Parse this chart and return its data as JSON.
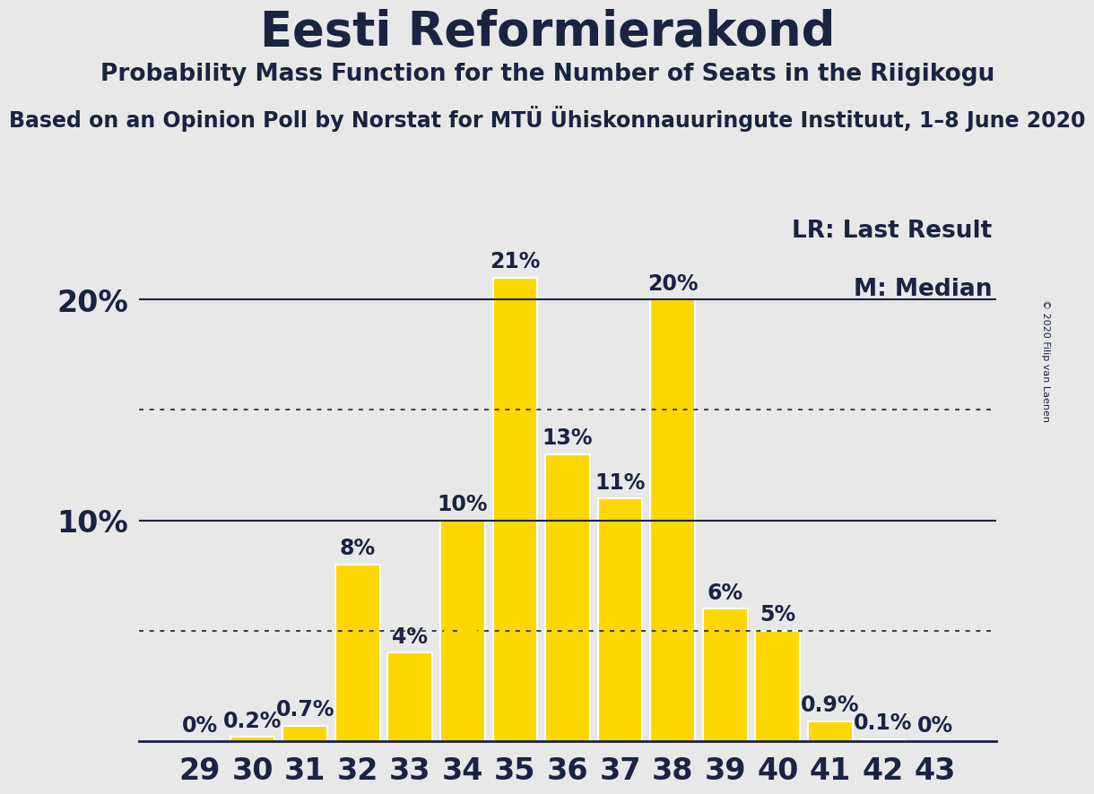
{
  "title": "Eesti Reformierakond",
  "subtitle1": "Probability Mass Function for the Number of Seats in the Riigikogu",
  "subtitle2": "Based on an Opinion Poll by Norstat for MTÜ Ühiskonnauuringute Instituut, 1–8 June 2020",
  "copyright": "© 2020 Filip van Laenen",
  "categories": [
    29,
    30,
    31,
    32,
    33,
    34,
    35,
    36,
    37,
    38,
    39,
    40,
    41,
    42,
    43
  ],
  "values": [
    0.0,
    0.2,
    0.7,
    8.0,
    4.0,
    10.0,
    21.0,
    13.0,
    11.0,
    20.0,
    6.0,
    5.0,
    0.9,
    0.1,
    0.0
  ],
  "bar_color": "#FFD700",
  "bar_edge_color": "#FFFFFF",
  "background_color": "#E8E8E8",
  "text_color": "#1a2340",
  "title_fontsize": 38,
  "subtitle1_fontsize": 19,
  "subtitle2_fontsize": 17,
  "label_fontsize": 17,
  "tick_fontsize": 24,
  "legend_fontsize": 19,
  "ylim": [
    0,
    24
  ],
  "dotted_lines": [
    5.0,
    15.0
  ],
  "solid_lines": [
    10.0,
    20.0
  ],
  "LR_bar": 34,
  "M_bar": 36,
  "LR_label_color": "#FFD700",
  "M_label_color": "#FFD700"
}
